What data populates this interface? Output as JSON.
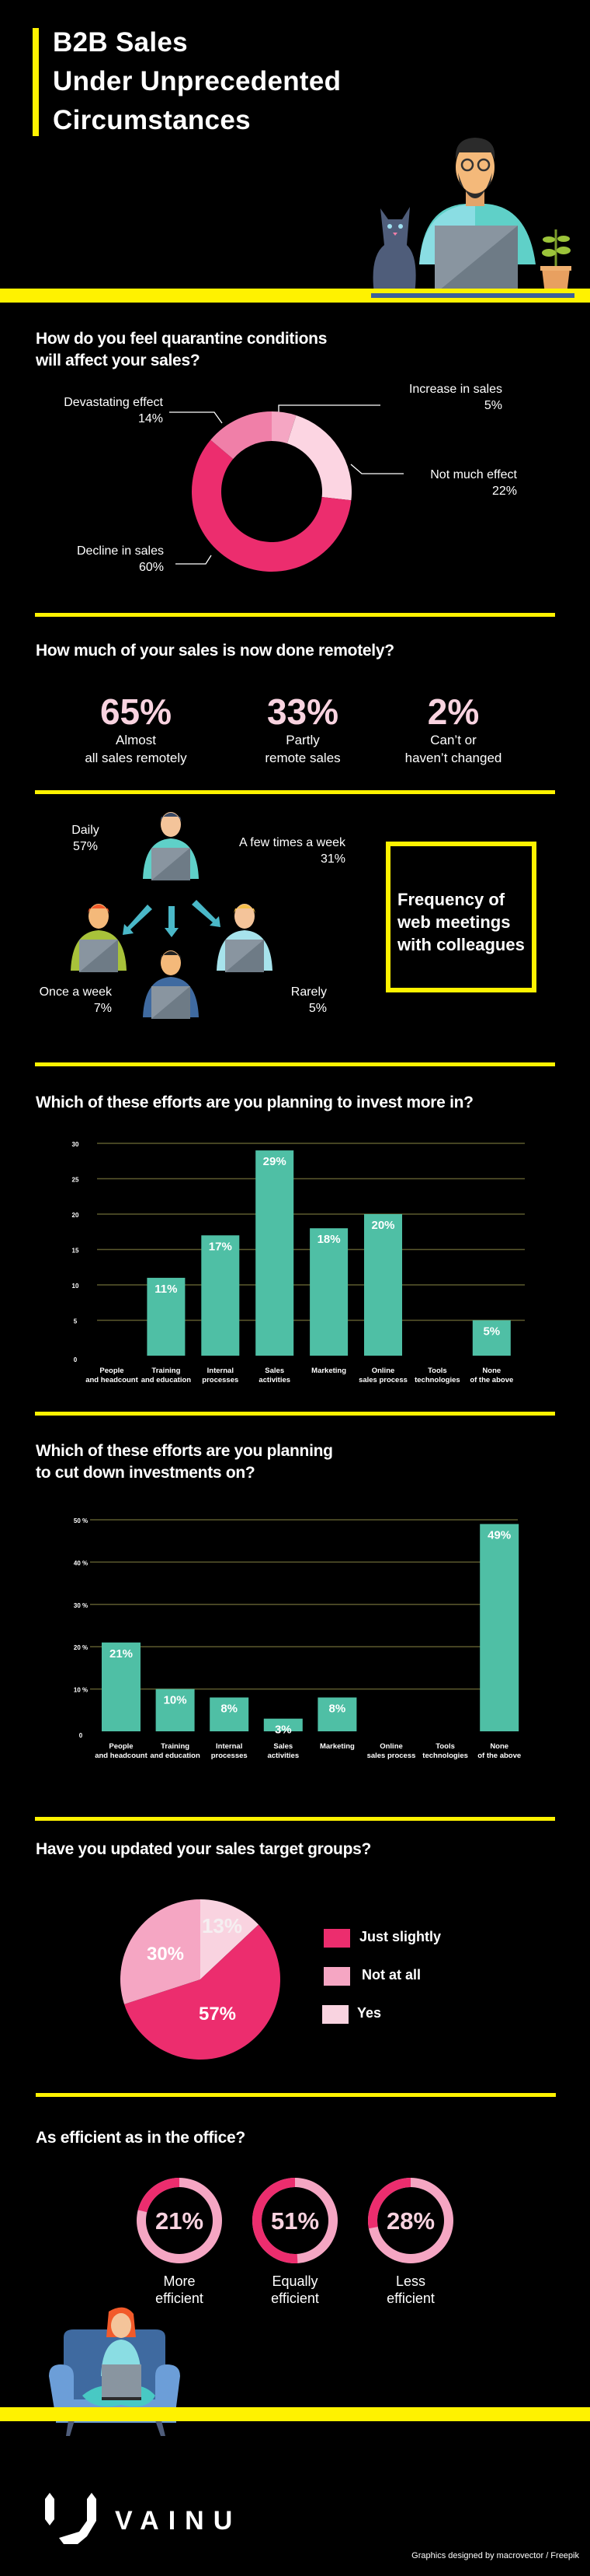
{
  "header": {
    "title_lines": [
      "B2B Sales",
      "Under Unprecedented",
      "Circumstances"
    ]
  },
  "q1": {
    "question_lines": [
      "How do you feel quarantine conditions",
      "will affect your sales?"
    ],
    "slices": [
      {
        "label": "Increase in sales",
        "pct": "5%",
        "value": 5,
        "color": "#f5a6c3"
      },
      {
        "label": "Not much effect",
        "pct": "22%",
        "value": 22,
        "color": "#fcd5e2"
      },
      {
        "label": "Decline in sales",
        "pct": "60%",
        "value": 60,
        "color": "#ec2d6e"
      },
      {
        "label": "Devastating effect",
        "pct": "14%",
        "value": 14,
        "color": "#f07fa8"
      }
    ]
  },
  "q2": {
    "question": "How much of your sales is now done remotely?",
    "stats": [
      {
        "value": "65%",
        "line1": "Almost",
        "line2": "all sales remotely"
      },
      {
        "value": "33%",
        "line1": "Partly",
        "line2": "remote sales"
      },
      {
        "value": "2%",
        "line1": "Can’t or",
        "line2": "haven’t changed"
      }
    ]
  },
  "meetings": {
    "title_lines": [
      "Frequency of",
      "web meetings",
      "with colleagues"
    ],
    "items": [
      {
        "label": "Daily",
        "pct": "57%"
      },
      {
        "label": "A few times a week",
        "pct": "31%"
      },
      {
        "label": "Once a week",
        "pct": "7%"
      },
      {
        "label": "Rarely",
        "pct": "5%"
      }
    ]
  },
  "chart_data": [
    {
      "type": "bar",
      "title": "Which of these efforts are you planning to invest more in?",
      "categories": [
        [
          "People",
          "and headcount"
        ],
        [
          "Training",
          "and education"
        ],
        [
          "Internal",
          "processes"
        ],
        [
          "Sales",
          "activities"
        ],
        [
          "Marketing",
          ""
        ],
        [
          "Online",
          "sales process"
        ],
        [
          "Tools",
          "technologies"
        ],
        [
          "None",
          "of the above"
        ]
      ],
      "values": [
        0,
        11,
        17,
        29,
        18,
        20,
        0,
        5
      ],
      "value_labels": [
        "",
        "11%",
        "17%",
        "29%",
        "18%",
        "20%",
        "",
        "5%"
      ],
      "yticks": [
        "0",
        "5",
        "10",
        "15",
        "20",
        "25",
        "30"
      ],
      "ylim": [
        0,
        30
      ],
      "grid": true,
      "bar_color": "#4fbfa5"
    },
    {
      "type": "bar",
      "title_lines": [
        "Which of these efforts are you planning",
        "to cut down investments on?"
      ],
      "categories": [
        [
          "People",
          "and headcount"
        ],
        [
          "Training",
          "and education"
        ],
        [
          "Internal",
          "processes"
        ],
        [
          "Sales",
          "activities"
        ],
        [
          "Marketing",
          ""
        ],
        [
          "Online",
          "sales process"
        ],
        [
          "Tools",
          "technologies"
        ],
        [
          "None",
          "of the above"
        ]
      ],
      "values": [
        21,
        10,
        8,
        3,
        8,
        0,
        0,
        49
      ],
      "value_labels": [
        "21%",
        "10%",
        "8%",
        "3%",
        "8%",
        "",
        "",
        "49%"
      ],
      "yticks": [
        "0",
        "10 %",
        "20 %",
        "30 %",
        "40 %",
        "50 %"
      ],
      "ylim": [
        0,
        50
      ],
      "grid": true,
      "bar_color": "#4fbfa5"
    },
    {
      "type": "pie",
      "title": "Have you updated your sales target groups?",
      "slices": [
        {
          "label": "Yes",
          "pct": "13%",
          "value": 13,
          "color": "#f9d3e0"
        },
        {
          "label": "Just slightly",
          "pct": "57%",
          "value": 57,
          "color": "#ec2d6e"
        },
        {
          "label": "Not at all",
          "pct": "30%",
          "value": 30,
          "color": "#f5a6c3"
        }
      ],
      "legend": [
        "Just slightly",
        "Not at all",
        "Yes"
      ],
      "legend_colors": [
        "#ec2d6e",
        "#f5a6c3",
        "#f9d3e0"
      ],
      "legend_placement": "right"
    },
    {
      "type": "pie",
      "title": "As efficient as in the office?",
      "rings": [
        {
          "value": 21,
          "pct": "21%",
          "line1": "More",
          "line2": "efficient"
        },
        {
          "value": 51,
          "pct": "51%",
          "line1": "Equally",
          "line2": "efficient"
        },
        {
          "value": 28,
          "pct": "28%",
          "line1": "Less",
          "line2": "efficient"
        }
      ],
      "ring_colors": {
        "filled": "#ec2d6e",
        "rest": "#f5a6c3"
      }
    }
  ],
  "footer": {
    "brand": "VAINU",
    "credit": "Graphics designed by macrovector / Freepik"
  },
  "colors": {
    "accent": "#fff200",
    "pink": "#ec2d6e",
    "teal": "#4fbfa5"
  }
}
